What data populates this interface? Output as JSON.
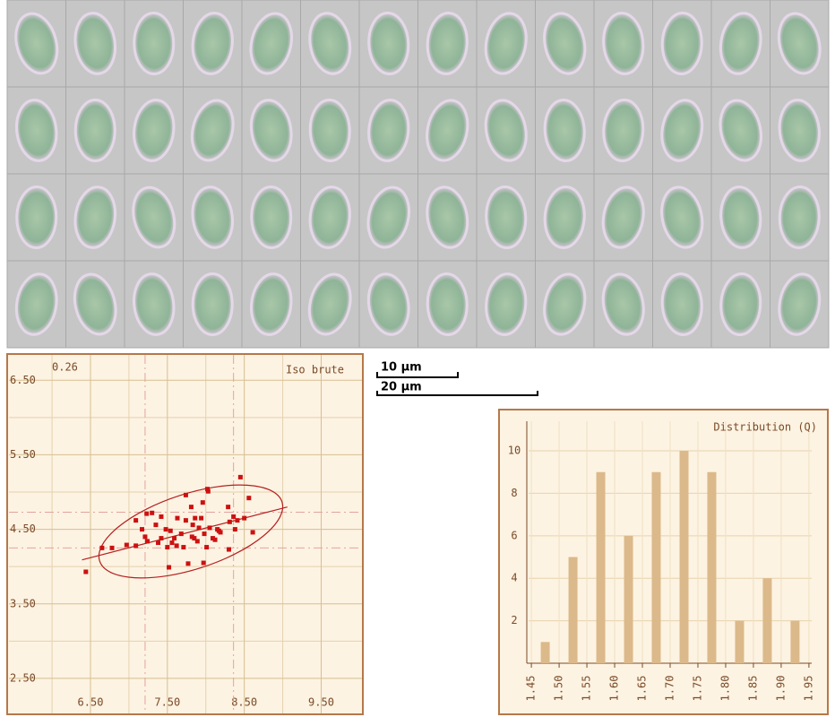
{
  "scale_bars": [
    "10 µm",
    "20 µm"
  ],
  "chart_data": [
    {
      "type": "scatter",
      "title": "Iso brute",
      "annotations": [
        "0.26"
      ],
      "color": "#cc1111",
      "grid": true,
      "x": [
        6.44,
        6.78,
        6.97,
        7.09,
        7.09,
        7.17,
        7.21,
        7.24,
        7.3,
        7.35,
        7.38,
        7.42,
        7.48,
        7.5,
        7.52,
        7.56,
        7.59,
        7.62,
        7.54,
        7.68,
        7.71,
        7.74,
        7.77,
        7.81,
        7.74,
        7.82,
        7.85,
        7.89,
        7.91,
        7.94,
        7.96,
        7.98,
        8.01,
        8.03,
        8.05,
        8.09,
        8.12,
        8.15,
        8.17,
        7.97,
        8.02,
        8.29,
        8.31,
        8.36,
        8.38,
        8.41,
        8.45,
        8.5,
        8.56,
        8.61,
        8.3,
        6.65,
        7.23,
        7.63,
        7.83,
        8.19,
        7.86,
        7.42
      ],
      "y": [
        3.93,
        4.25,
        4.29,
        4.28,
        4.62,
        4.5,
        4.4,
        4.34,
        4.72,
        4.56,
        4.32,
        4.38,
        4.5,
        4.26,
        3.99,
        4.32,
        4.38,
        4.28,
        4.48,
        4.44,
        4.26,
        4.62,
        4.04,
        4.8,
        4.96,
        4.4,
        4.38,
        4.34,
        4.52,
        4.65,
        4.86,
        4.44,
        4.26,
        5.01,
        4.52,
        4.38,
        4.36,
        4.5,
        4.48,
        4.05,
        5.04,
        4.8,
        4.6,
        4.67,
        4.5,
        4.62,
        5.2,
        4.65,
        4.92,
        4.46,
        4.23,
        4.25,
        4.71,
        4.65,
        4.56,
        4.46,
        4.65,
        4.67
      ],
      "xlim": [
        5.44,
        10.03
      ],
      "ylim": [
        2.03,
        6.84
      ],
      "xticks": [
        {
          "value": 6.5,
          "label": "6.50"
        },
        {
          "value": 7.5,
          "label": "7.50"
        },
        {
          "value": 8.5,
          "label": "8.50"
        },
        {
          "value": 9.5,
          "label": "9.50"
        }
      ],
      "yticks": [
        {
          "value": 2.5,
          "label": "2.50"
        },
        {
          "value": 3.5,
          "label": "3.50"
        },
        {
          "value": 4.5,
          "label": "4.50"
        },
        {
          "value": 5.5,
          "label": "5.50"
        },
        {
          "value": 6.5,
          "label": "6.50"
        }
      ],
      "minor_xticks": [
        6,
        7,
        8,
        9
      ],
      "minor_yticks": [
        3,
        4,
        5,
        6
      ],
      "reference_lines": {
        "x": [
          7.21,
          8.36
        ],
        "y": [
          4.73,
          4.25
        ]
      },
      "trend_line": {
        "x": [
          6.39,
          9.06
        ],
        "y": [
          4.09,
          4.8
        ]
      }
    },
    {
      "type": "histogram",
      "title": "Distribution (Q)",
      "color": "#dcb98a",
      "grid": true,
      "bins": [
        1.45,
        1.5,
        1.55,
        1.6,
        1.65,
        1.7,
        1.75,
        1.8,
        1.85,
        1.9,
        1.95
      ],
      "values": [
        1,
        5,
        9,
        6,
        9,
        10,
        9,
        2,
        4,
        2
      ],
      "xlim": [
        1.445,
        1.955
      ],
      "ylim": [
        0,
        11.9
      ],
      "xticks": [
        1.45,
        {
          "value": 1.5,
          "label": "1.50"
        },
        1.55,
        {
          "value": 1.6,
          "label": "1.60"
        },
        1.65,
        {
          "value": 1.7,
          "label": "1.70"
        },
        1.75,
        {
          "value": 1.8,
          "label": "1.80"
        },
        1.85,
        {
          "value": 1.9,
          "label": "1.90"
        },
        1.95
      ],
      "yticks": [
        2,
        4,
        6,
        8,
        10
      ]
    }
  ]
}
